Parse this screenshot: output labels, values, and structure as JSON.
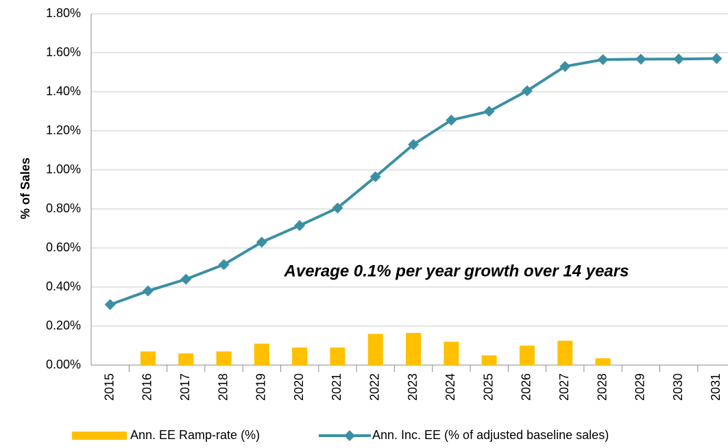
{
  "chart_data": {
    "type": "bar",
    "y_axis_label": "% of Sales",
    "annotation": "Average 0.1% per year growth over 14 years",
    "categories": [
      "2015",
      "2016",
      "2017",
      "2018",
      "2019",
      "2020",
      "2021",
      "2022",
      "2023",
      "2024",
      "2025",
      "2026",
      "2027",
      "2028",
      "2029",
      "2030",
      "2031"
    ],
    "series": [
      {
        "name": "Ann. EE Ramp-rate (%)",
        "type": "bar",
        "color": "#FFC000",
        "values": [
          null,
          0.07,
          0.06,
          0.07,
          0.11,
          0.09,
          0.09,
          0.16,
          0.165,
          0.12,
          0.05,
          0.1,
          0.125,
          0.035,
          0,
          0,
          0
        ]
      },
      {
        "name": "Ann. Inc. EE (% of adjusted baseline sales)",
        "type": "line",
        "color": "#3B8FA3",
        "values": [
          0.31,
          0.38,
          0.44,
          0.515,
          0.63,
          0.715,
          0.805,
          0.965,
          1.13,
          1.255,
          1.3,
          1.405,
          1.53,
          1.565,
          1.567,
          1.568,
          1.57
        ]
      }
    ],
    "ylim": [
      0,
      1.8
    ],
    "yticks": [
      {
        "value": 0,
        "label": "0.00%"
      },
      {
        "value": 0.2,
        "label": "0.20%"
      },
      {
        "value": 0.4,
        "label": "0.40%"
      },
      {
        "value": 0.6,
        "label": "0.60%"
      },
      {
        "value": 0.8,
        "label": "0.80%"
      },
      {
        "value": 1.0,
        "label": "1.00%"
      },
      {
        "value": 1.2,
        "label": "1.20%"
      },
      {
        "value": 1.4,
        "label": "1.40%"
      },
      {
        "value": 1.6,
        "label": "1.60%"
      },
      {
        "value": 1.8,
        "label": "1.80%"
      }
    ],
    "grid": true
  }
}
